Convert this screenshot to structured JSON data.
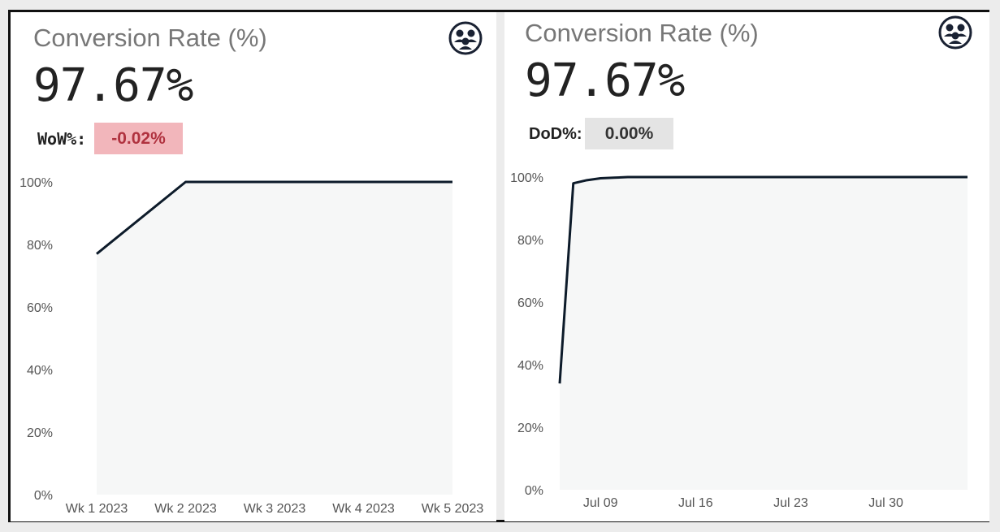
{
  "cards": [
    {
      "title": "Conversion Rate (%)",
      "value": "97.67%",
      "delta_label": "WoW%:",
      "delta_value": "-0.02%",
      "icon": "users-sync-icon"
    },
    {
      "title": "Conversion Rate (%)",
      "value": "97.67%",
      "delta_label": "DoD%:",
      "delta_value": "0.00%",
      "icon": "users-sync-icon"
    }
  ],
  "colors": {
    "line": "#0d1b2a",
    "area": "#f6f7f7",
    "negative_bg": "#f2b6bb",
    "negative_text": "#b0323f",
    "neutral_bg": "#e4e4e4"
  },
  "chart_data": [
    {
      "type": "area",
      "categories": [
        "Wk 1 2023",
        "Wk 2 2023",
        "Wk 3 2023",
        "Wk 4 2023",
        "Wk 5 2023"
      ],
      "values": [
        77,
        100,
        100,
        100,
        100
      ],
      "ylim": [
        0,
        100
      ],
      "yticks": [
        "0%",
        "20%",
        "40%",
        "60%",
        "80%",
        "100%"
      ],
      "grid": false
    },
    {
      "type": "area",
      "x_tick_labels": [
        "Jul 09",
        "Jul 16",
        "Jul 23",
        "Jul 30"
      ],
      "x_tick_days": [
        9,
        16,
        23,
        30
      ],
      "x_range": [
        6,
        36
      ],
      "x": [
        6,
        7,
        8,
        9,
        10,
        11,
        12,
        13,
        14,
        15,
        16,
        17,
        18,
        19,
        20,
        21,
        22,
        23,
        24,
        25,
        26,
        27,
        28,
        29,
        30,
        31,
        32,
        33,
        34,
        35,
        36
      ],
      "values": [
        34,
        98,
        99,
        99.6,
        99.8,
        100,
        100,
        100,
        100,
        100,
        100,
        100,
        100,
        100,
        100,
        100,
        100,
        100,
        100,
        100,
        100,
        100,
        100,
        100,
        100,
        100,
        100,
        100,
        100,
        100,
        100
      ],
      "ylim": [
        0,
        100
      ],
      "yticks": [
        "0%",
        "20%",
        "40%",
        "60%",
        "80%",
        "100%"
      ],
      "grid": false
    }
  ]
}
